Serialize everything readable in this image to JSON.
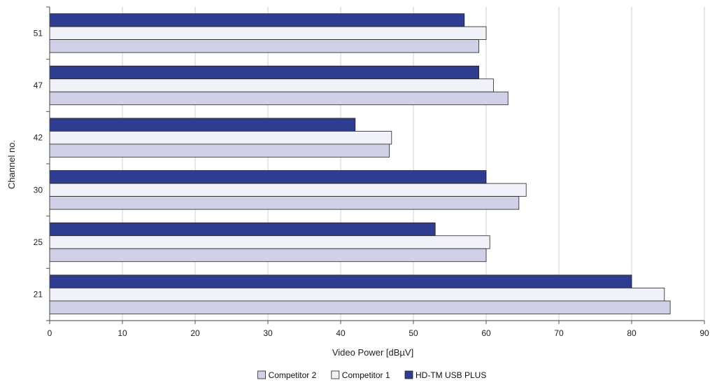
{
  "chart_data": {
    "type": "bar",
    "orientation": "horizontal",
    "categories": [
      "51",
      "47",
      "42",
      "30",
      "25",
      "21"
    ],
    "series": [
      {
        "name": "HD-TM USB PLUS",
        "values": [
          57,
          59,
          42,
          60,
          53,
          80
        ],
        "color": "#2e3d8f"
      },
      {
        "name": "Competitor 1",
        "values": [
          60,
          61,
          47,
          65.5,
          60.5,
          84.5
        ],
        "color": "#f1f1f9"
      },
      {
        "name": "Competitor 2",
        "values": [
          59,
          63,
          46.7,
          64.5,
          60,
          85.3
        ],
        "color": "#d0d0e6"
      }
    ],
    "xlabel": "Video Power [dBµV]",
    "ylabel": "Channel no.",
    "xlim": [
      0,
      90
    ],
    "xticks": [
      "0",
      "10",
      "20",
      "30",
      "40",
      "50",
      "60",
      "70",
      "80",
      "90"
    ],
    "grid": "vertical",
    "legend_position": "bottom",
    "legend": [
      "Competitor 2",
      "Competitor 1",
      "HD-TM USB PLUS"
    ]
  }
}
